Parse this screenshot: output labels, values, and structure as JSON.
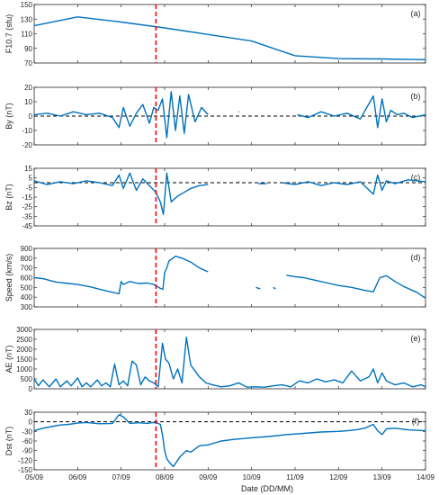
{
  "figure": {
    "xlabel": "Date (DD/MM)",
    "x_tick_labels": [
      "05/09",
      "06/09",
      "07/09",
      "08/09",
      "09/09",
      "10/09",
      "11/09",
      "12/09",
      "13/09",
      "14/09"
    ],
    "x_range": [
      "05/09",
      "14/09"
    ],
    "event_marker": {
      "x_day": 2.8,
      "color": "#ff0000",
      "style": "dashed"
    },
    "line_color": "#0072bd"
  },
  "chart_data": [
    {
      "type": "line",
      "panel_label": "(a)",
      "ylabel": "F10.7 (sfu)",
      "ylim": [
        70,
        150
      ],
      "yticks": [
        70,
        90,
        110,
        130,
        150
      ],
      "x": [
        0,
        1,
        2,
        3,
        4,
        5,
        6,
        7,
        8,
        9
      ],
      "y": [
        121,
        133,
        126,
        118,
        109,
        100,
        80,
        76,
        75.5,
        74.5
      ]
    },
    {
      "type": "line",
      "panel_label": "(b)",
      "ylabel": "By (nT)",
      "ylim": [
        -20,
        20
      ],
      "yticks": [
        -20,
        -10,
        0,
        10,
        20
      ],
      "zero_line": true,
      "x": [
        0,
        0.3,
        0.6,
        0.9,
        1.2,
        1.5,
        1.8,
        1.95,
        2.05,
        2.2,
        2.35,
        2.5,
        2.65,
        2.75,
        2.85,
        2.95,
        3.05,
        3.15,
        3.25,
        3.35,
        3.45,
        3.55,
        3.7,
        3.85,
        4.0,
        4.5,
        4.7,
        4.72,
        5.1,
        5.13,
        5.4,
        6.05,
        6.3,
        6.6,
        6.9,
        7.2,
        7.5,
        7.8,
        7.9,
        8.0,
        8.1,
        8.2,
        8.35,
        8.5,
        8.7,
        9.0
      ],
      "y": [
        1,
        2,
        0,
        3,
        1,
        2,
        -1,
        -8,
        6,
        -7,
        2,
        8,
        -5,
        6,
        4,
        12,
        -15,
        17,
        -10,
        14,
        -12,
        15,
        -4,
        6,
        1,
        null,
        3,
        3,
        null,
        -2,
        null,
        1,
        -1,
        3,
        0,
        2,
        -2,
        14,
        -8,
        12,
        -4,
        4,
        1,
        2,
        -1,
        1
      ]
    },
    {
      "type": "line",
      "panel_label": "(c)",
      "ylabel": "Bz (nT)",
      "ylim": [
        -45,
        15
      ],
      "yticks": [
        -45,
        -35,
        -25,
        -15,
        -5,
        5,
        15
      ],
      "zero_line": true,
      "x": [
        0,
        0.3,
        0.6,
        0.9,
        1.2,
        1.5,
        1.8,
        1.95,
        2.05,
        2.2,
        2.35,
        2.5,
        2.65,
        2.8,
        2.9,
        2.97,
        3.05,
        3.15,
        3.3,
        3.45,
        3.6,
        3.8,
        4.0,
        4.5,
        4.7,
        4.72,
        5.1,
        5.15,
        5.35,
        5.4,
        5.7,
        6.0,
        6.3,
        6.6,
        6.9,
        7.2,
        7.5,
        7.8,
        7.9,
        8.0,
        8.1,
        8.3,
        8.6,
        9.0
      ],
      "y": [
        2,
        -2,
        1,
        -1,
        2,
        0,
        -3,
        8,
        -6,
        10,
        -8,
        4,
        -3,
        -10,
        -20,
        -33,
        10,
        -20,
        -14,
        -10,
        -6,
        -3,
        -2,
        null,
        1,
        1,
        null,
        -1,
        -1,
        null,
        0,
        -2,
        1,
        -3,
        0,
        -2,
        1,
        -12,
        8,
        -8,
        2,
        -1,
        3,
        1
      ]
    },
    {
      "type": "line",
      "panel_label": "(d)",
      "ylabel": "Speed (km/s)",
      "ylim": [
        300,
        900
      ],
      "yticks": [
        300,
        400,
        500,
        600,
        700,
        800,
        900
      ],
      "x": [
        0,
        0.2,
        0.5,
        0.8,
        1.0,
        1.3,
        1.6,
        1.95,
        2.0,
        2.05,
        2.2,
        2.4,
        2.6,
        2.75,
        2.9,
        2.96,
        3.0,
        3.05,
        3.1,
        3.25,
        3.4,
        3.6,
        3.8,
        4.0,
        4.5,
        5.1,
        5.2,
        5.25,
        5.35,
        5.4,
        5.5,
        5.55,
        5.6,
        5.8,
        6.0,
        6.2,
        6.5,
        6.8,
        7.0,
        7.3,
        7.6,
        7.8,
        7.95,
        8.1,
        8.3,
        8.5,
        8.8,
        9.0
      ],
      "y": [
        600,
        590,
        555,
        540,
        530,
        505,
        470,
        435,
        560,
        530,
        560,
        540,
        545,
        530,
        490,
        480,
        650,
        700,
        770,
        820,
        800,
        760,
        700,
        660,
        null,
        500,
        485,
        null,
        490,
        null,
        500,
        485,
        null,
        625,
        610,
        600,
        570,
        540,
        520,
        500,
        470,
        455,
        600,
        620,
        560,
        510,
        450,
        390
      ]
    },
    {
      "type": "line",
      "panel_label": "(e)",
      "ylabel": "AE (nT)",
      "ylim": [
        0,
        3000
      ],
      "yticks": [
        0,
        500,
        1000,
        1500,
        2000,
        2500,
        3000
      ],
      "x": [
        0,
        0.1,
        0.2,
        0.35,
        0.5,
        0.6,
        0.75,
        0.85,
        1.0,
        1.1,
        1.2,
        1.3,
        1.45,
        1.55,
        1.65,
        1.75,
        1.85,
        1.95,
        2.05,
        2.15,
        2.25,
        2.35,
        2.45,
        2.55,
        2.65,
        2.75,
        2.85,
        2.95,
        3.02,
        3.1,
        3.2,
        3.3,
        3.4,
        3.5,
        3.6,
        3.7,
        3.8,
        3.95,
        4.1,
        4.3,
        4.5,
        4.7,
        4.9,
        5.1,
        5.3,
        5.5,
        5.7,
        5.9,
        6.1,
        6.3,
        6.5,
        6.7,
        6.9,
        7.1,
        7.3,
        7.5,
        7.7,
        7.8,
        7.9,
        8.0,
        8.1,
        8.3,
        8.5,
        8.7,
        8.9,
        9.0
      ],
      "y": [
        500,
        150,
        450,
        100,
        500,
        100,
        400,
        150,
        550,
        100,
        300,
        100,
        450,
        150,
        300,
        100,
        1250,
        200,
        400,
        150,
        1400,
        1200,
        200,
        600,
        400,
        300,
        100,
        2300,
        1500,
        1300,
        500,
        1000,
        300,
        2600,
        1200,
        900,
        600,
        300,
        200,
        100,
        150,
        300,
        80,
        100,
        80,
        150,
        200,
        100,
        400,
        300,
        500,
        350,
        450,
        300,
        900,
        400,
        600,
        1000,
        300,
        800,
        400,
        200,
        300,
        100,
        200,
        100
      ]
    },
    {
      "type": "line",
      "panel_label": "(f)",
      "ylabel": "Dst (nT)",
      "ylim": [
        -150,
        30
      ],
      "yticks": [
        -150,
        -120,
        -90,
        -60,
        -30,
        0,
        30
      ],
      "zero_line": true,
      "x": [
        0,
        0.2,
        0.4,
        0.6,
        0.8,
        1.0,
        1.2,
        1.5,
        1.8,
        1.95,
        2.05,
        2.2,
        2.4,
        2.6,
        2.7,
        2.8,
        2.9,
        2.95,
        3.0,
        3.05,
        3.1,
        3.2,
        3.35,
        3.5,
        3.6,
        3.8,
        4.0,
        4.3,
        4.6,
        5.0,
        5.4,
        5.8,
        6.2,
        6.6,
        7.0,
        7.2,
        7.4,
        7.6,
        7.8,
        7.9,
        8.0,
        8.1,
        8.3,
        8.6,
        9.0
      ],
      "y": [
        -28,
        -20,
        -15,
        -10,
        -8,
        -4,
        -2,
        -6,
        -5,
        22,
        15,
        -5,
        -3,
        -5,
        -3,
        -2,
        -8,
        -40,
        -90,
        -115,
        -125,
        -140,
        -110,
        -90,
        -95,
        -75,
        -72,
        -60,
        -55,
        -50,
        -46,
        -40,
        -36,
        -32,
        -30,
        -28,
        -25,
        -20,
        -8,
        -28,
        -40,
        -22,
        -20,
        -25,
        -28
      ]
    }
  ]
}
